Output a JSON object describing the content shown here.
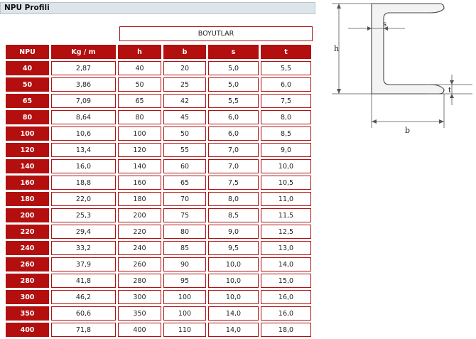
{
  "title": "NPU Profili",
  "group_header": "BOYUTLAR",
  "columns": [
    "NPU",
    "Kg / m",
    "h",
    "b",
    "s",
    "t"
  ],
  "rows": [
    [
      "40",
      "2,87",
      "40",
      "20",
      "5,0",
      "5,5"
    ],
    [
      "50",
      "3,86",
      "50",
      "25",
      "5,0",
      "6,0"
    ],
    [
      "65",
      "7,09",
      "65",
      "42",
      "5,5",
      "7,5"
    ],
    [
      "80",
      "8,64",
      "80",
      "45",
      "6,0",
      "8,0"
    ],
    [
      "100",
      "10,6",
      "100",
      "50",
      "6,0",
      "8,5"
    ],
    [
      "120",
      "13,4",
      "120",
      "55",
      "7,0",
      "9,0"
    ],
    [
      "140",
      "16,0",
      "140",
      "60",
      "7,0",
      "10,0"
    ],
    [
      "160",
      "18,8",
      "160",
      "65",
      "7,5",
      "10,5"
    ],
    [
      "180",
      "22,0",
      "180",
      "70",
      "8,0",
      "11,0"
    ],
    [
      "200",
      "25,3",
      "200",
      "75",
      "8,5",
      "11,5"
    ],
    [
      "220",
      "29,4",
      "220",
      "80",
      "9,0",
      "12,5"
    ],
    [
      "240",
      "33,2",
      "240",
      "85",
      "9,5",
      "13,0"
    ],
    [
      "260",
      "37,9",
      "260",
      "90",
      "10,0",
      "14,0"
    ],
    [
      "280",
      "41,8",
      "280",
      "95",
      "10,0",
      "15,0"
    ],
    [
      "300",
      "46,2",
      "300",
      "100",
      "10,0",
      "16,0"
    ],
    [
      "350",
      "60,6",
      "350",
      "100",
      "14,0",
      "16,0"
    ],
    [
      "400",
      "71,8",
      "400",
      "110",
      "14,0",
      "18,0"
    ]
  ],
  "diagram": {
    "label_h": "h",
    "label_b": "b",
    "label_s": "s",
    "label_t": "t"
  }
}
